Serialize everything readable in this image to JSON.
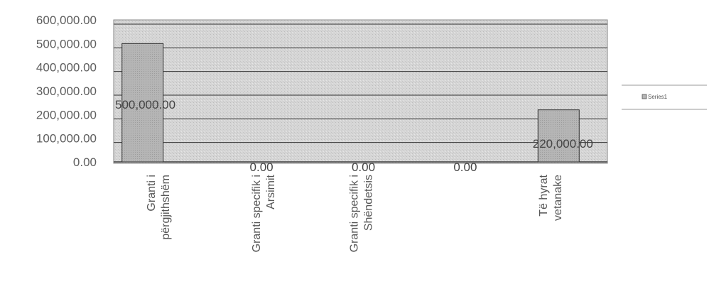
{
  "chart_data": {
    "type": "bar",
    "categories": [
      [
        "Granti i",
        "përgjithshëm"
      ],
      [
        "Granti specifik i",
        "Arsimit"
      ],
      [
        "Granti specifik i",
        "Shëndetsis"
      ],
      [],
      [
        "Të hyrat",
        "vetanake"
      ]
    ],
    "series": [
      {
        "name": "Series1",
        "values": [
          500000,
          0,
          0,
          0,
          220000
        ],
        "data_labels": [
          "500,000.00",
          "0.00",
          "0.00",
          "0.00",
          "220,000.00"
        ]
      }
    ],
    "y_ticks": [
      "0.00",
      "100,000.00",
      "200,000.00",
      "300,000.00",
      "400,000.00",
      "500,000.00",
      "600,000.00"
    ],
    "ylim": [
      0,
      600000
    ],
    "grid": true,
    "legend": {
      "position": "right",
      "label": "Series1"
    },
    "colors": {
      "bar": "#b8b8b8",
      "plot_bg": "#d8d8d8",
      "gridline": "#333333"
    }
  }
}
